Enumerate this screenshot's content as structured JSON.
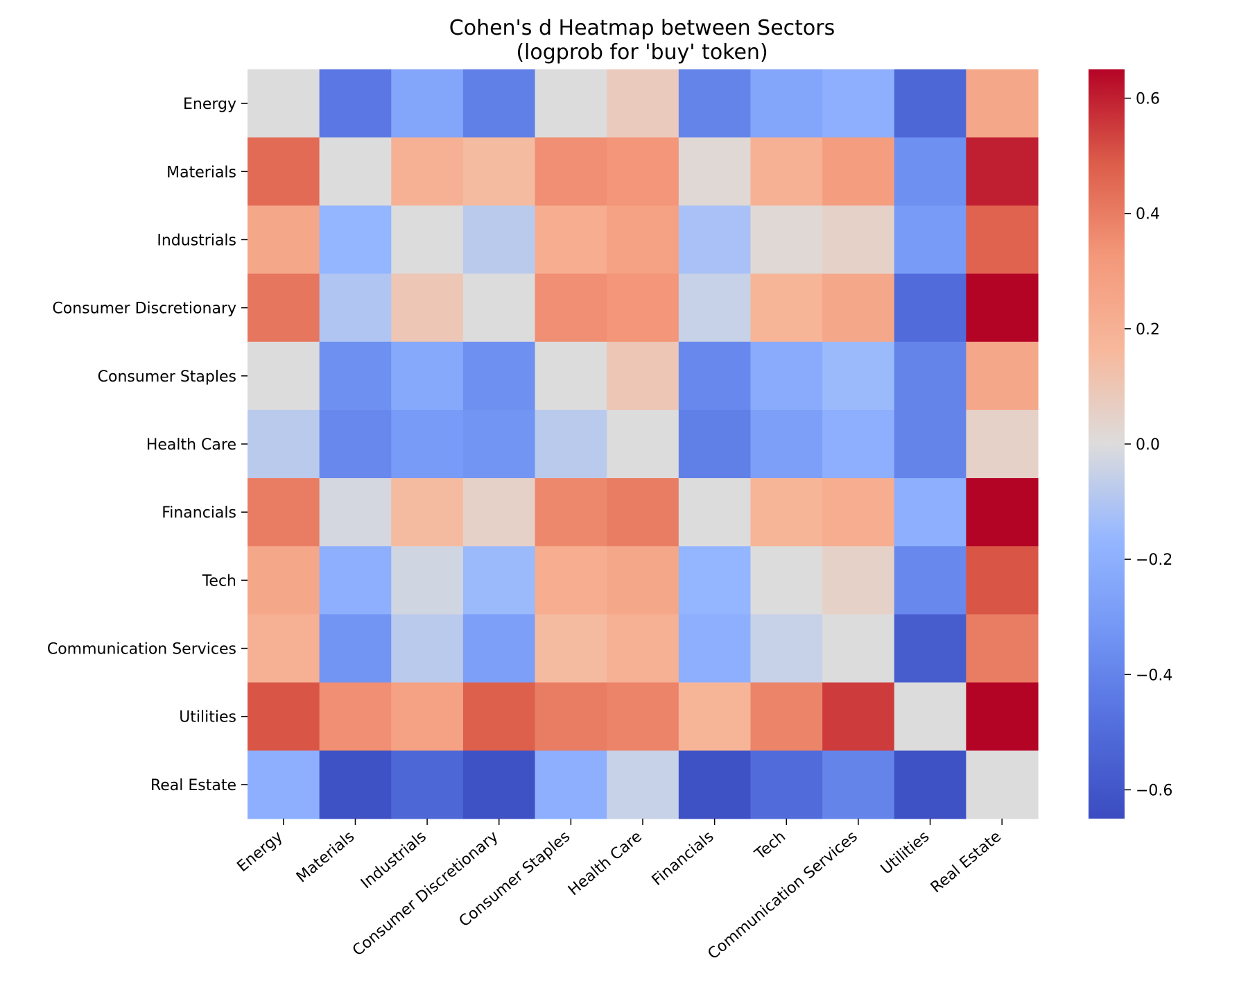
{
  "chart_data": {
    "type": "heatmap",
    "title": "Cohen's d Heatmap between Sectors",
    "subtitle": "(logprob for 'buy' token)",
    "xlabel": "",
    "ylabel": "",
    "rows": [
      "Energy",
      "Materials",
      "Industrials",
      "Consumer Discretionary",
      "Consumer Staples",
      "Health Care",
      "Financials",
      "Tech",
      "Communication Services",
      "Utilities",
      "Real Estate"
    ],
    "columns": [
      "Energy",
      "Materials",
      "Industrials",
      "Consumer Discretionary",
      "Consumer Staples",
      "Health Care",
      "Financials",
      "Tech",
      "Communication Services",
      "Utilities",
      "Real Estate"
    ],
    "values": [
      [
        0.0,
        -0.45,
        -0.25,
        -0.42,
        0.0,
        0.08,
        -0.4,
        -0.25,
        -0.2,
        -0.52,
        0.25
      ],
      [
        0.45,
        0.0,
        0.2,
        0.15,
        0.35,
        0.33,
        0.02,
        0.2,
        0.3,
        -0.35,
        0.6
      ],
      [
        0.25,
        -0.17,
        0.0,
        -0.08,
        0.22,
        0.28,
        -0.12,
        0.02,
        0.05,
        -0.3,
        0.47
      ],
      [
        0.42,
        -0.1,
        0.1,
        0.0,
        0.35,
        0.33,
        -0.05,
        0.18,
        0.25,
        -0.5,
        0.65
      ],
      [
        0.0,
        -0.35,
        -0.23,
        -0.35,
        0.0,
        0.1,
        -0.38,
        -0.22,
        -0.15,
        -0.4,
        0.25
      ],
      [
        -0.08,
        -0.38,
        -0.3,
        -0.33,
        -0.08,
        0.0,
        -0.42,
        -0.28,
        -0.2,
        -0.4,
        0.05
      ],
      [
        0.4,
        -0.02,
        0.15,
        0.05,
        0.37,
        0.4,
        0.0,
        0.18,
        0.22,
        -0.2,
        0.65
      ],
      [
        0.25,
        -0.2,
        -0.03,
        -0.15,
        0.22,
        0.25,
        -0.17,
        0.0,
        0.05,
        -0.38,
        0.5
      ],
      [
        0.2,
        -0.33,
        -0.08,
        -0.28,
        0.15,
        0.2,
        -0.2,
        -0.05,
        0.0,
        -0.57,
        0.4
      ],
      [
        0.5,
        0.35,
        0.28,
        0.48,
        0.4,
        0.38,
        0.18,
        0.38,
        0.55,
        0.0,
        0.65
      ],
      [
        -0.2,
        -0.62,
        -0.52,
        -0.62,
        -0.2,
        -0.05,
        -0.62,
        -0.5,
        -0.4,
        -0.62,
        0.0
      ]
    ],
    "colormap": "coolwarm",
    "vmin": -0.65,
    "vmax": 0.65,
    "colorbar_ticks": [
      0.6,
      0.4,
      0.2,
      0.0,
      -0.2,
      -0.4,
      -0.6
    ],
    "colorbar_tick_labels": [
      "0.6",
      "0.4",
      "0.2",
      "0.0",
      "−0.2",
      "−0.4",
      "−0.6"
    ]
  }
}
